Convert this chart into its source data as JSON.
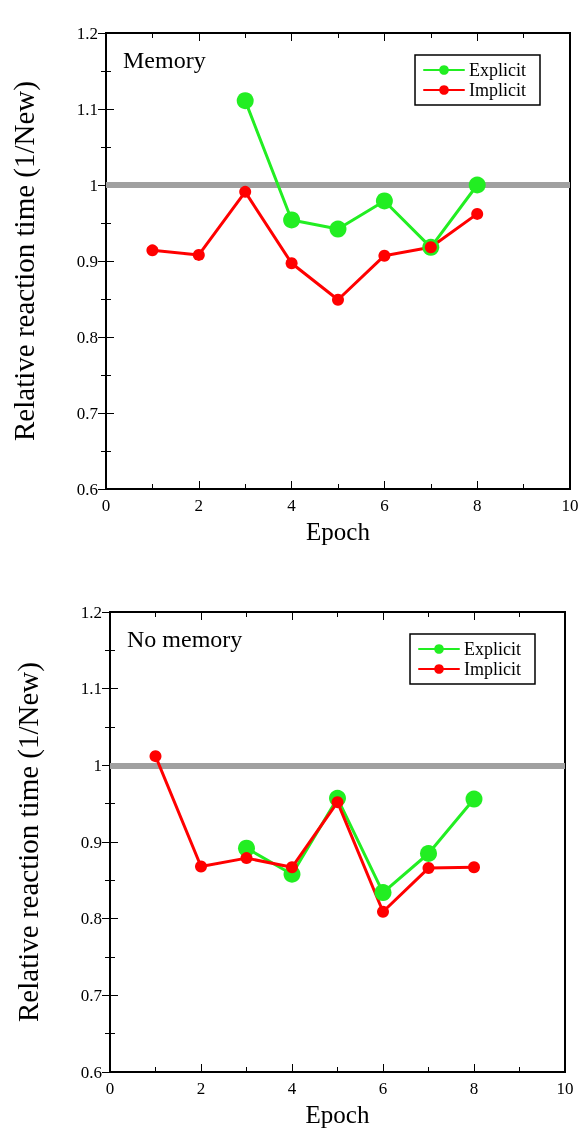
{
  "chart_data": [
    {
      "type": "line",
      "title": "Memory",
      "xlabel": "Epoch",
      "ylabel": "Relative reaction time (1/New)",
      "x": [
        1,
        2,
        3,
        4,
        5,
        6,
        7,
        8
      ],
      "series": [
        {
          "name": "Explicit",
          "color": "#22ee22",
          "values": [
            null,
            null,
            1.111,
            0.954,
            0.942,
            0.979,
            0.918,
            1.0
          ]
        },
        {
          "name": "Implicit",
          "color": "#ff0000",
          "values": [
            0.914,
            0.908,
            0.991,
            0.897,
            0.849,
            0.907,
            0.918,
            0.962
          ]
        }
      ],
      "xlim": [
        0,
        10
      ],
      "xticks": [
        0,
        2,
        4,
        6,
        8,
        10
      ],
      "ylim": [
        0.6,
        1.2
      ],
      "yticks": [
        0.6,
        0.7,
        0.8,
        0.9,
        1,
        1.1,
        1.2
      ],
      "ref_lines": [
        {
          "axis": "y",
          "value": 1,
          "color": "#a0a0a0"
        }
      ],
      "legend": "top right",
      "marker": "circle",
      "line_style": "solid",
      "grid": false
    },
    {
      "type": "line",
      "title": "No memory",
      "xlabel": "Epoch",
      "ylabel": "Relative reaction time (1/New)",
      "x": [
        1,
        2,
        3,
        4,
        5,
        6,
        7,
        8
      ],
      "series": [
        {
          "name": "Explicit",
          "color": "#22ee22",
          "values": [
            null,
            null,
            0.892,
            0.858,
            0.957,
            0.834,
            0.885,
            0.956
          ]
        },
        {
          "name": "Implicit",
          "color": "#ff0000",
          "values": [
            1.012,
            0.868,
            0.879,
            0.867,
            0.952,
            0.809,
            0.866,
            0.867
          ]
        }
      ],
      "xlim": [
        0,
        10
      ],
      "xticks": [
        0,
        2,
        4,
        6,
        8,
        10
      ],
      "ylim": [
        0.6,
        1.2
      ],
      "yticks": [
        0.6,
        0.7,
        0.8,
        0.9,
        1,
        1.1,
        1.2
      ],
      "ref_lines": [
        {
          "axis": "y",
          "value": 1,
          "color": "#a0a0a0"
        }
      ],
      "legend": "top right",
      "marker": "circle",
      "line_style": "solid",
      "grid": false
    }
  ]
}
